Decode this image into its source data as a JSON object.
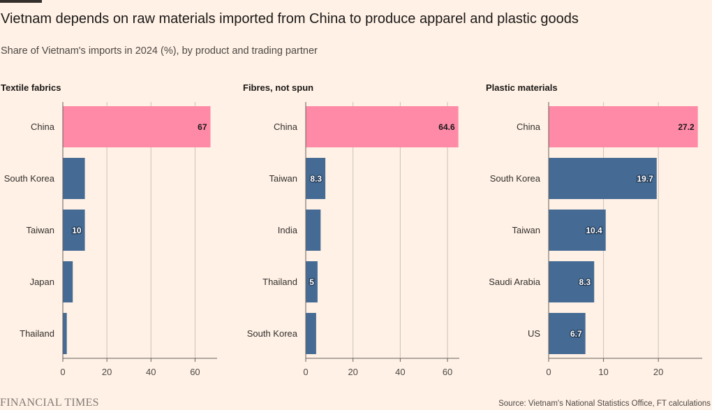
{
  "header": {
    "title": "Vietnam depends on raw materials imported from China to produce apparel and plastic goods",
    "subtitle": "Share of Vietnam's imports in 2024 (%), by product and trading partner"
  },
  "footer": {
    "brand": "FINANCIAL TIMES",
    "source": "Source: Vietnam's National Statistics Office, FT calculations"
  },
  "colors": {
    "highlight": "#ff8aa8",
    "bar": "#456b94",
    "grid": "#ccc1b7",
    "axis": "#66605c"
  },
  "chart_data": [
    {
      "type": "bar",
      "orientation": "horizontal",
      "title": "Textile fabrics",
      "categories": [
        "China",
        "South Korea",
        "Taiwan",
        "Japan",
        "Thailand"
      ],
      "values": [
        67,
        10,
        10,
        4.5,
        1.8
      ],
      "data_labels": [
        "67",
        "",
        "10",
        "",
        ""
      ],
      "xlim": [
        0,
        70
      ],
      "xticks": [
        0,
        20,
        40,
        60
      ],
      "grid": true
    },
    {
      "type": "bar",
      "orientation": "horizontal",
      "title": "Fibres, not spun",
      "categories": [
        "China",
        "Taiwan",
        "India",
        "Thailand",
        "South Korea"
      ],
      "values": [
        64.6,
        8.3,
        6.3,
        5,
        4.4
      ],
      "data_labels": [
        "64.6",
        "8.3",
        "",
        "5",
        ""
      ],
      "xlim": [
        0,
        65
      ],
      "xticks": [
        0,
        20,
        40,
        60
      ],
      "grid": true
    },
    {
      "type": "bar",
      "orientation": "horizontal",
      "title": "Plastic materials",
      "categories": [
        "China",
        "South Korea",
        "Taiwan",
        "Saudi Arabia",
        "US"
      ],
      "values": [
        27.2,
        19.7,
        10.4,
        8.3,
        6.7
      ],
      "data_labels": [
        "27.2",
        "19.7",
        "10.4",
        "8.3",
        "6.7"
      ],
      "xlim": [
        0,
        28
      ],
      "xticks": [
        0,
        10,
        20
      ],
      "grid": true
    }
  ]
}
